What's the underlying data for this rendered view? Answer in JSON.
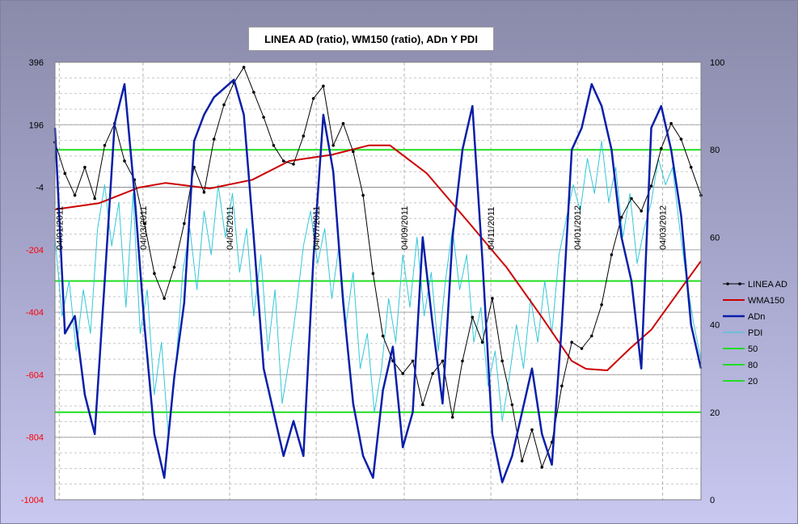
{
  "chart_data": {
    "type": "line",
    "title": "LINEA AD (ratio), WM150 (ratio), ADn Y PDI",
    "y_left": {
      "range": [
        -1004,
        396
      ],
      "ticks": [
        396,
        196,
        -4,
        -204,
        -404,
        -604,
        -804,
        -1004
      ],
      "negative_color": "#ff0000"
    },
    "y_right": {
      "range": [
        0,
        100
      ],
      "ticks": [
        100,
        80,
        60,
        40,
        20,
        0
      ]
    },
    "x": {
      "range": [
        "2011-01-01",
        "2012-03-31"
      ],
      "tick_labels": [
        "04/01/2011",
        "04/03/2011",
        "04/05/2011",
        "04/07/2011",
        "04/09/2011",
        "04/11/2011",
        "04/01/2012",
        "04/03/2012"
      ],
      "tick_dates": [
        "2011-01-04",
        "2011-03-04",
        "2011-05-04",
        "2011-07-04",
        "2011-09-04",
        "2011-11-04",
        "2012-01-04",
        "2012-03-04"
      ]
    },
    "grid": true,
    "legend_position": "right",
    "series": [
      {
        "name": "LINEA AD",
        "axis": "left",
        "color": "#000000",
        "marker": true,
        "points": [
          [
            "2011-01-01",
            140
          ],
          [
            "2011-01-08",
            40
          ],
          [
            "2011-01-15",
            -30
          ],
          [
            "2011-01-22",
            60
          ],
          [
            "2011-01-29",
            -40
          ],
          [
            "2011-02-05",
            130
          ],
          [
            "2011-02-12",
            200
          ],
          [
            "2011-02-19",
            80
          ],
          [
            "2011-02-26",
            20
          ],
          [
            "2011-03-05",
            -120
          ],
          [
            "2011-03-12",
            -280
          ],
          [
            "2011-03-19",
            -360
          ],
          [
            "2011-03-26",
            -260
          ],
          [
            "2011-04-02",
            -120
          ],
          [
            "2011-04-09",
            60
          ],
          [
            "2011-04-16",
            -20
          ],
          [
            "2011-04-23",
            150
          ],
          [
            "2011-04-30",
            260
          ],
          [
            "2011-05-07",
            330
          ],
          [
            "2011-05-14",
            380
          ],
          [
            "2011-05-21",
            300
          ],
          [
            "2011-05-28",
            220
          ],
          [
            "2011-06-04",
            130
          ],
          [
            "2011-06-11",
            80
          ],
          [
            "2011-06-18",
            70
          ],
          [
            "2011-06-25",
            160
          ],
          [
            "2011-07-02",
            280
          ],
          [
            "2011-07-09",
            320
          ],
          [
            "2011-07-16",
            130
          ],
          [
            "2011-07-23",
            200
          ],
          [
            "2011-07-30",
            110
          ],
          [
            "2011-08-06",
            -30
          ],
          [
            "2011-08-13",
            -280
          ],
          [
            "2011-08-20",
            -480
          ],
          [
            "2011-08-27",
            -560
          ],
          [
            "2011-09-03",
            -600
          ],
          [
            "2011-09-10",
            -560
          ],
          [
            "2011-09-17",
            -700
          ],
          [
            "2011-09-24",
            -600
          ],
          [
            "2011-10-01",
            -560
          ],
          [
            "2011-10-08",
            -740
          ],
          [
            "2011-10-15",
            -560
          ],
          [
            "2011-10-22",
            -420
          ],
          [
            "2011-10-29",
            -500
          ],
          [
            "2011-11-05",
            -360
          ],
          [
            "2011-11-12",
            -560
          ],
          [
            "2011-11-19",
            -700
          ],
          [
            "2011-11-26",
            -880
          ],
          [
            "2011-12-03",
            -780
          ],
          [
            "2011-12-10",
            -900
          ],
          [
            "2011-12-17",
            -820
          ],
          [
            "2011-12-24",
            -640
          ],
          [
            "2011-12-31",
            -500
          ],
          [
            "2012-01-07",
            -520
          ],
          [
            "2012-01-14",
            -480
          ],
          [
            "2012-01-21",
            -380
          ],
          [
            "2012-01-28",
            -220
          ],
          [
            "2012-02-04",
            -100
          ],
          [
            "2012-02-11",
            -40
          ],
          [
            "2012-02-18",
            -80
          ],
          [
            "2012-02-25",
            0
          ],
          [
            "2012-03-03",
            120
          ],
          [
            "2012-03-10",
            200
          ],
          [
            "2012-03-17",
            150
          ],
          [
            "2012-03-24",
            60
          ],
          [
            "2012-03-31",
            -30
          ]
        ]
      },
      {
        "name": "WMA150",
        "axis": "left",
        "color": "#cc0000",
        "points": [
          [
            "2011-01-01",
            -75
          ],
          [
            "2011-02-01",
            -55
          ],
          [
            "2011-03-01",
            -5
          ],
          [
            "2011-03-20",
            10
          ],
          [
            "2011-04-20",
            -8
          ],
          [
            "2011-05-20",
            20
          ],
          [
            "2011-06-15",
            80
          ],
          [
            "2011-07-15",
            100
          ],
          [
            "2011-08-10",
            130
          ],
          [
            "2011-08-25",
            130
          ],
          [
            "2011-09-20",
            40
          ],
          [
            "2011-10-20",
            -120
          ],
          [
            "2011-11-15",
            -260
          ],
          [
            "2011-12-10",
            -420
          ],
          [
            "2011-12-31",
            -560
          ],
          [
            "2012-01-10",
            -585
          ],
          [
            "2012-01-25",
            -590
          ],
          [
            "2012-02-10",
            -520
          ],
          [
            "2012-02-25",
            -460
          ],
          [
            "2012-03-15",
            -340
          ],
          [
            "2012-03-31",
            -240
          ]
        ]
      },
      {
        "name": "ADn",
        "axis": "right",
        "color": "#0a1fa8",
        "points": [
          [
            "2011-01-01",
            85
          ],
          [
            "2011-01-08",
            38
          ],
          [
            "2011-01-15",
            42
          ],
          [
            "2011-01-22",
            24
          ],
          [
            "2011-01-29",
            15
          ],
          [
            "2011-02-05",
            50
          ],
          [
            "2011-02-12",
            86
          ],
          [
            "2011-02-19",
            95
          ],
          [
            "2011-02-26",
            70
          ],
          [
            "2011-03-05",
            40
          ],
          [
            "2011-03-12",
            15
          ],
          [
            "2011-03-19",
            5
          ],
          [
            "2011-03-26",
            28
          ],
          [
            "2011-04-02",
            45
          ],
          [
            "2011-04-09",
            82
          ],
          [
            "2011-04-16",
            88
          ],
          [
            "2011-04-23",
            92
          ],
          [
            "2011-05-07",
            96
          ],
          [
            "2011-05-14",
            88
          ],
          [
            "2011-05-21",
            60
          ],
          [
            "2011-05-28",
            30
          ],
          [
            "2011-06-04",
            20
          ],
          [
            "2011-06-11",
            10
          ],
          [
            "2011-06-18",
            18
          ],
          [
            "2011-06-25",
            10
          ],
          [
            "2011-07-02",
            55
          ],
          [
            "2011-07-09",
            88
          ],
          [
            "2011-07-16",
            75
          ],
          [
            "2011-07-23",
            45
          ],
          [
            "2011-07-30",
            22
          ],
          [
            "2011-08-06",
            10
          ],
          [
            "2011-08-13",
            5
          ],
          [
            "2011-08-20",
            25
          ],
          [
            "2011-08-27",
            35
          ],
          [
            "2011-09-03",
            12
          ],
          [
            "2011-09-10",
            20
          ],
          [
            "2011-09-17",
            60
          ],
          [
            "2011-09-24",
            40
          ],
          [
            "2011-10-01",
            22
          ],
          [
            "2011-10-08",
            60
          ],
          [
            "2011-10-15",
            80
          ],
          [
            "2011-10-22",
            90
          ],
          [
            "2011-10-29",
            55
          ],
          [
            "2011-11-05",
            15
          ],
          [
            "2011-11-12",
            4
          ],
          [
            "2011-11-19",
            10
          ],
          [
            "2011-11-26",
            20
          ],
          [
            "2011-12-03",
            30
          ],
          [
            "2011-12-10",
            15
          ],
          [
            "2011-12-17",
            8
          ],
          [
            "2011-12-24",
            40
          ],
          [
            "2011-12-31",
            80
          ],
          [
            "2012-01-07",
            85
          ],
          [
            "2012-01-14",
            95
          ],
          [
            "2012-01-21",
            90
          ],
          [
            "2012-01-28",
            80
          ],
          [
            "2012-02-04",
            60
          ],
          [
            "2012-02-11",
            50
          ],
          [
            "2012-02-18",
            30
          ],
          [
            "2012-02-25",
            85
          ],
          [
            "2012-03-03",
            90
          ],
          [
            "2012-03-10",
            80
          ],
          [
            "2012-03-17",
            65
          ],
          [
            "2012-03-24",
            40
          ],
          [
            "2012-03-31",
            30
          ]
        ]
      },
      {
        "name": "PDI",
        "axis": "right",
        "color": "#33c8d8",
        "points": [
          [
            "2011-01-01",
            60
          ],
          [
            "2011-01-06",
            42
          ],
          [
            "2011-01-11",
            50
          ],
          [
            "2011-01-16",
            34
          ],
          [
            "2011-01-21",
            48
          ],
          [
            "2011-01-26",
            38
          ],
          [
            "2011-01-31",
            62
          ],
          [
            "2011-02-05",
            72
          ],
          [
            "2011-02-10",
            58
          ],
          [
            "2011-02-15",
            68
          ],
          [
            "2011-02-20",
            44
          ],
          [
            "2011-02-25",
            70
          ],
          [
            "2011-03-02",
            38
          ],
          [
            "2011-03-07",
            48
          ],
          [
            "2011-03-12",
            24
          ],
          [
            "2011-03-17",
            36
          ],
          [
            "2011-03-22",
            14
          ],
          [
            "2011-03-27",
            30
          ],
          [
            "2011-04-01",
            52
          ],
          [
            "2011-04-06",
            62
          ],
          [
            "2011-04-11",
            48
          ],
          [
            "2011-04-16",
            66
          ],
          [
            "2011-04-21",
            56
          ],
          [
            "2011-04-26",
            72
          ],
          [
            "2011-05-01",
            60
          ],
          [
            "2011-05-06",
            70
          ],
          [
            "2011-05-11",
            52
          ],
          [
            "2011-05-16",
            62
          ],
          [
            "2011-05-21",
            42
          ],
          [
            "2011-05-26",
            56
          ],
          [
            "2011-05-31",
            34
          ],
          [
            "2011-06-05",
            48
          ],
          [
            "2011-06-10",
            22
          ],
          [
            "2011-06-15",
            32
          ],
          [
            "2011-06-20",
            44
          ],
          [
            "2011-06-25",
            58
          ],
          [
            "2011-06-30",
            66
          ],
          [
            "2011-07-05",
            54
          ],
          [
            "2011-07-10",
            62
          ],
          [
            "2011-07-15",
            46
          ],
          [
            "2011-07-20",
            58
          ],
          [
            "2011-07-25",
            40
          ],
          [
            "2011-07-30",
            52
          ],
          [
            "2011-08-04",
            30
          ],
          [
            "2011-08-09",
            38
          ],
          [
            "2011-08-14",
            20
          ],
          [
            "2011-08-19",
            30
          ],
          [
            "2011-08-24",
            46
          ],
          [
            "2011-08-29",
            36
          ],
          [
            "2011-09-03",
            56
          ],
          [
            "2011-09-08",
            44
          ],
          [
            "2011-09-13",
            60
          ],
          [
            "2011-09-18",
            42
          ],
          [
            "2011-09-23",
            52
          ],
          [
            "2011-09-28",
            34
          ],
          [
            "2011-10-03",
            50
          ],
          [
            "2011-10-08",
            62
          ],
          [
            "2011-10-13",
            48
          ],
          [
            "2011-10-18",
            56
          ],
          [
            "2011-10-23",
            36
          ],
          [
            "2011-10-28",
            44
          ],
          [
            "2011-11-02",
            26
          ],
          [
            "2011-11-07",
            34
          ],
          [
            "2011-11-12",
            18
          ],
          [
            "2011-11-17",
            28
          ],
          [
            "2011-11-22",
            40
          ],
          [
            "2011-11-27",
            30
          ],
          [
            "2011-12-02",
            46
          ],
          [
            "2011-12-07",
            36
          ],
          [
            "2011-12-12",
            50
          ],
          [
            "2011-12-17",
            38
          ],
          [
            "2011-12-22",
            56
          ],
          [
            "2011-12-27",
            64
          ],
          [
            "2012-01-01",
            72
          ],
          [
            "2012-01-06",
            66
          ],
          [
            "2012-01-11",
            78
          ],
          [
            "2012-01-16",
            70
          ],
          [
            "2012-01-21",
            82
          ],
          [
            "2012-01-26",
            68
          ],
          [
            "2012-01-31",
            76
          ],
          [
            "2012-02-05",
            60
          ],
          [
            "2012-02-10",
            70
          ],
          [
            "2012-02-15",
            54
          ],
          [
            "2012-02-20",
            62
          ],
          [
            "2012-02-25",
            68
          ],
          [
            "2012-03-01",
            78
          ],
          [
            "2012-03-06",
            72
          ],
          [
            "2012-03-11",
            76
          ],
          [
            "2012-03-16",
            62
          ],
          [
            "2012-03-21",
            50
          ],
          [
            "2012-03-26",
            40
          ],
          [
            "2012-03-31",
            32
          ]
        ]
      },
      {
        "name": "50",
        "axis": "right",
        "color": "#22dd22",
        "value": 50
      },
      {
        "name": "80",
        "axis": "right",
        "color": "#22dd22",
        "value": 80
      },
      {
        "name": "20",
        "axis": "right",
        "color": "#22dd22",
        "value": 20
      }
    ]
  }
}
